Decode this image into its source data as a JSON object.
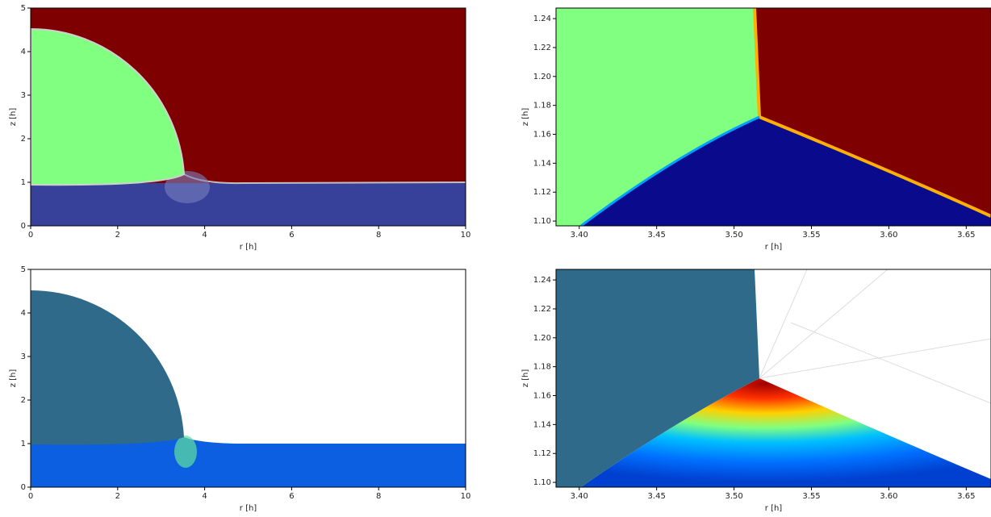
{
  "chart_data": [
    {
      "type": "field",
      "xlabel": "r [h]",
      "ylabel": "z [h]",
      "xlim": [
        0,
        10
      ],
      "ylim": [
        0,
        5
      ],
      "xticks": [
        0,
        2,
        4,
        6,
        8,
        10
      ],
      "yticks": [
        0,
        1,
        2,
        3,
        4,
        5
      ]
    },
    {
      "type": "field",
      "xlabel": "r [h]",
      "ylabel": "z [h]",
      "xlim": [
        3.385,
        3.666
      ],
      "ylim": [
        1.0967,
        1.2473
      ],
      "xticks": [
        {
          "value": 3.4,
          "label": "3.40"
        },
        3.45,
        {
          "value": 3.5,
          "label": "3.50"
        },
        3.55,
        {
          "value": 3.6,
          "label": "3.60"
        },
        3.65
      ],
      "yticks": [
        {
          "value": 1.1,
          "label": "1.10"
        },
        1.12,
        1.14,
        1.16,
        1.18,
        {
          "value": 1.2,
          "label": "1.20"
        },
        1.22,
        1.24
      ]
    },
    {
      "type": "field",
      "xlabel": "r [h]",
      "ylabel": "z [h]",
      "xlim": [
        0,
        10
      ],
      "ylim": [
        0,
        5
      ],
      "xticks": [
        0,
        2,
        4,
        6,
        8,
        10
      ],
      "yticks": [
        0,
        1,
        2,
        3,
        4,
        5
      ]
    },
    {
      "type": "field",
      "xlabel": "r [h]",
      "ylabel": "z [h]",
      "xlim": [
        3.385,
        3.666
      ],
      "ylim": [
        1.0967,
        1.2473
      ],
      "xticks": [
        {
          "value": 3.4,
          "label": "3.40"
        },
        3.45,
        {
          "value": 3.5,
          "label": "3.50"
        },
        3.55,
        {
          "value": 3.6,
          "label": "3.60"
        },
        3.65
      ],
      "yticks": [
        {
          "value": 1.1,
          "label": "1.10"
        },
        1.12,
        1.14,
        1.16,
        1.18,
        {
          "value": 1.2,
          "label": "1.20"
        },
        1.22,
        1.24
      ]
    }
  ]
}
